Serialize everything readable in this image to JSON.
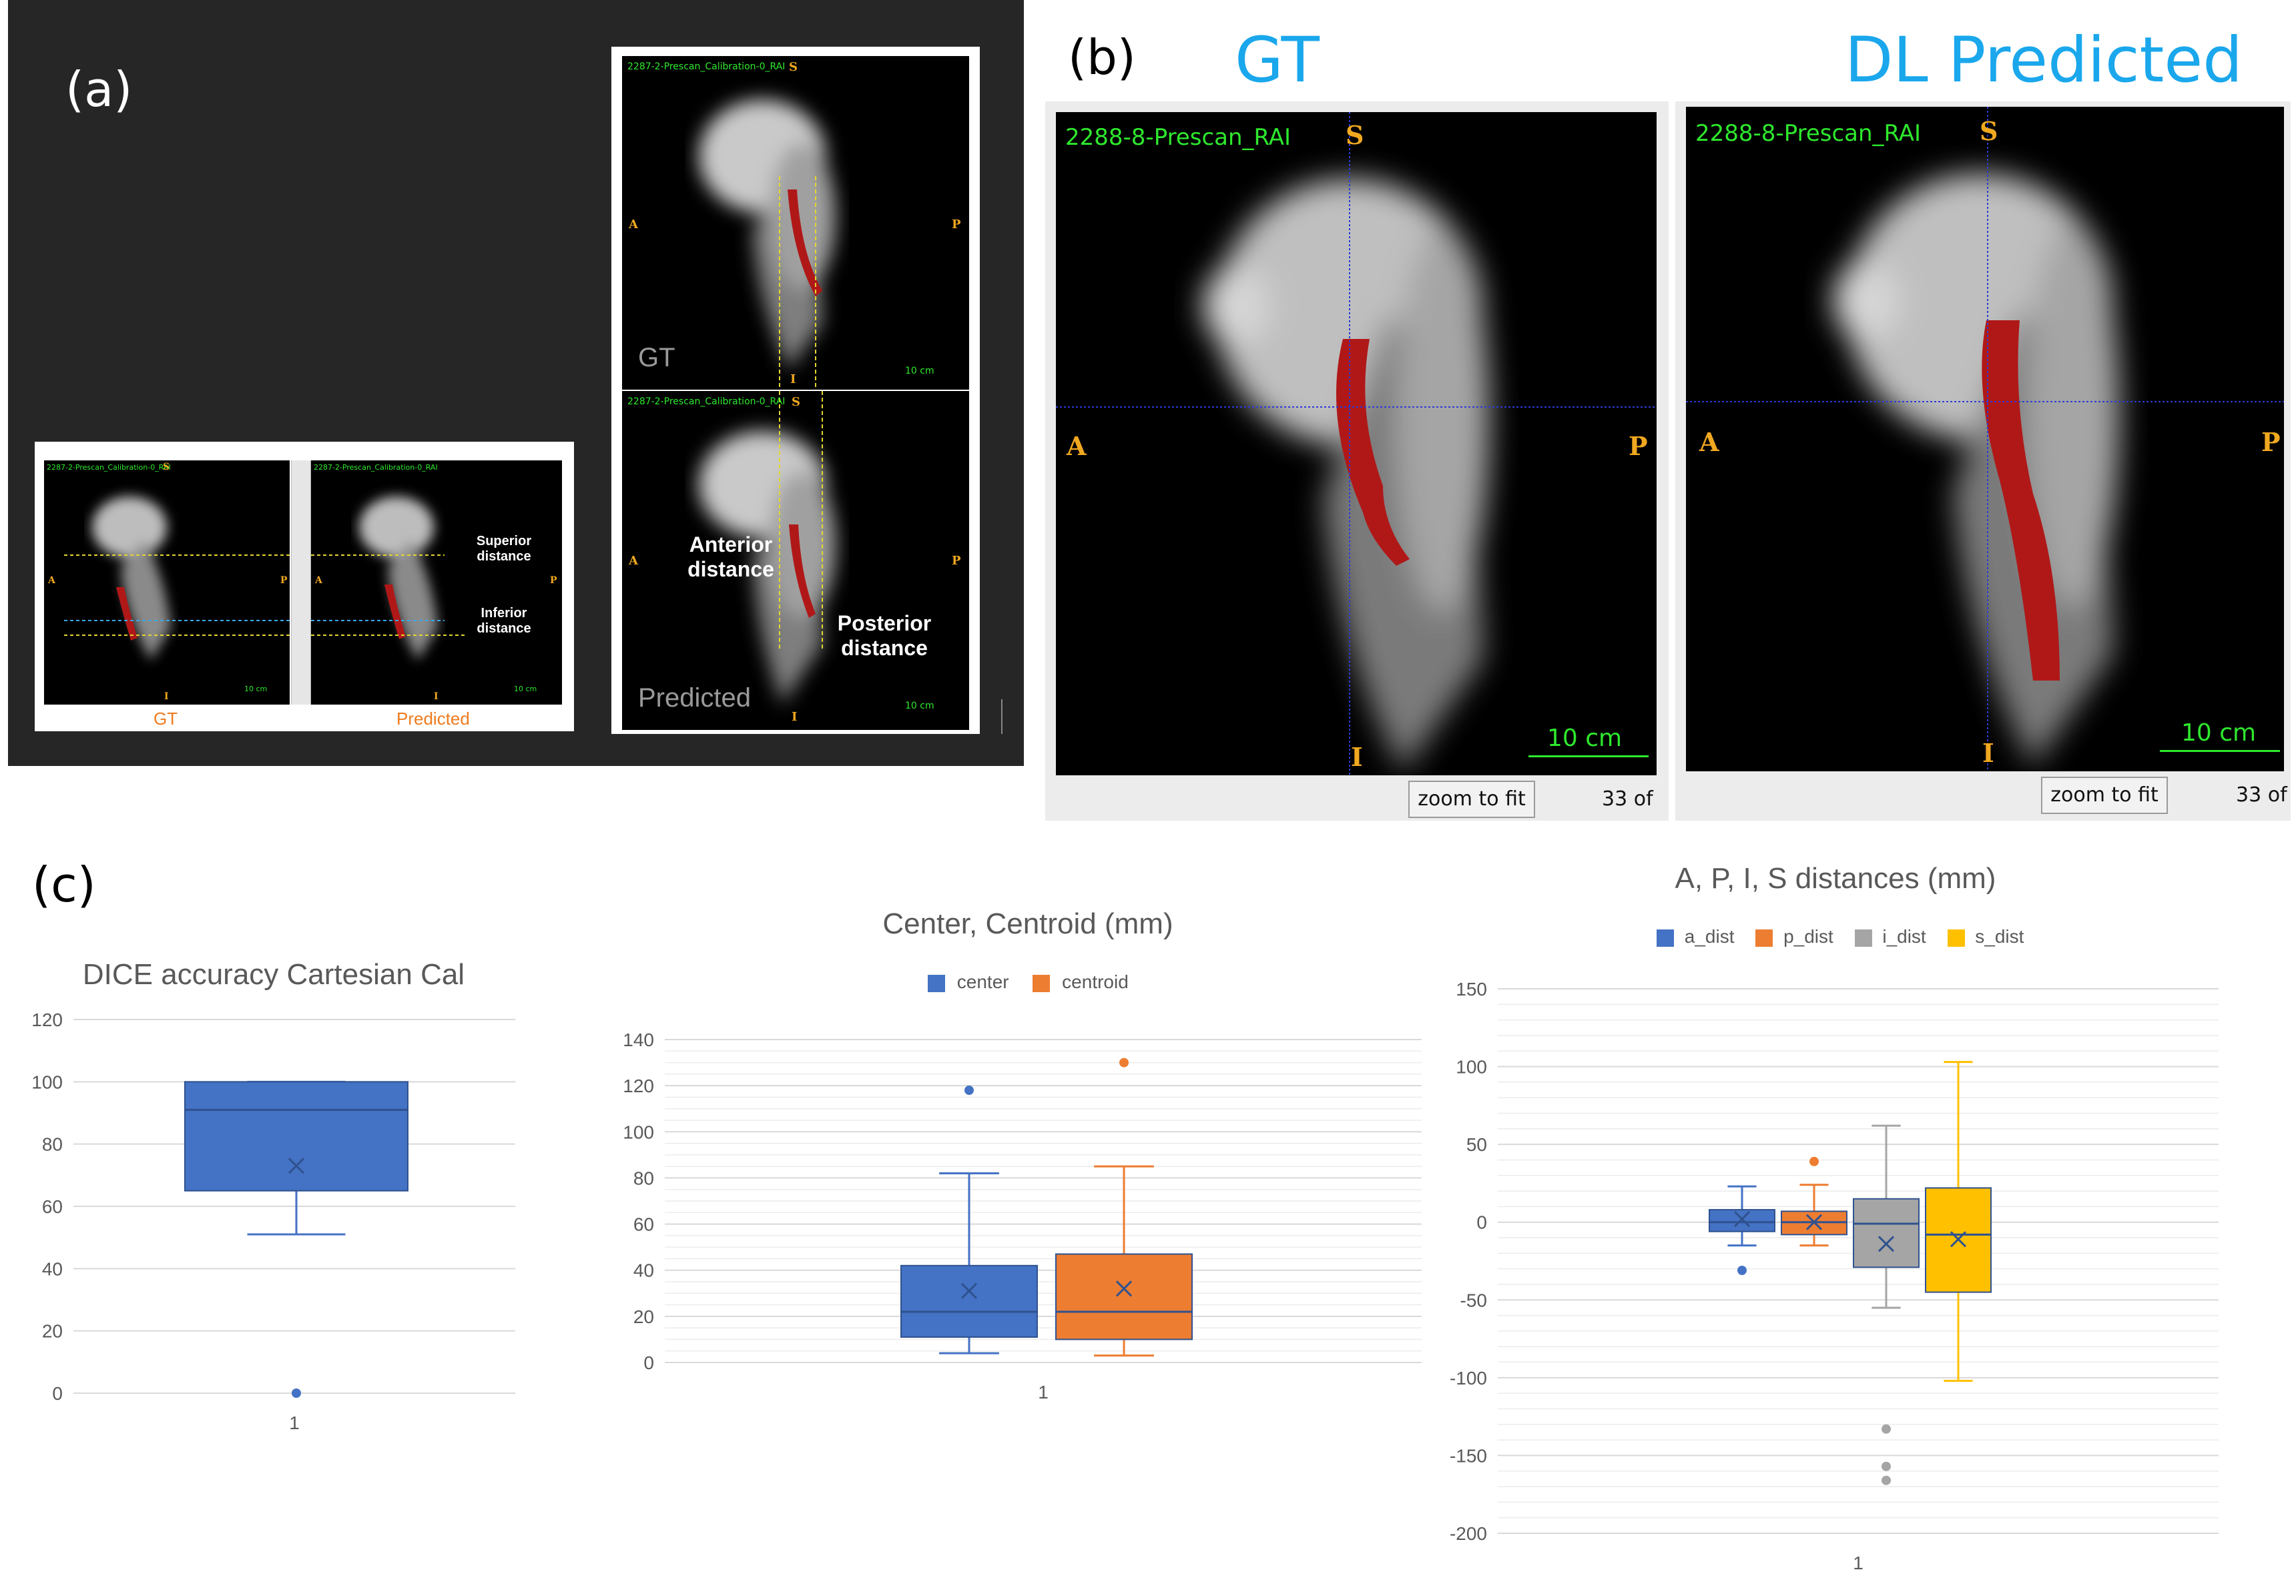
{
  "labels": {
    "a": "(a)",
    "b": "(b)",
    "c": "(c)"
  },
  "panel_a": {
    "scan_id": "2287-2-Prescan_Calibration-0_RAI",
    "orient": {
      "s": "S",
      "i": "I",
      "a": "A",
      "p": "P"
    },
    "scale": "10 cm",
    "small_caption_gt": "GT",
    "small_caption_pred": "Predicted",
    "superior": "Superior distance",
    "inferior": "Inferior distance",
    "anterior": "Anterior distance",
    "posterior": "Posterior distance",
    "gt": "GT",
    "predicted": "Predicted"
  },
  "panel_b": {
    "title_gt": "GT",
    "title_pred": "DL Predicted",
    "scan_id": "2288-8-Prescan_RAI",
    "orient": {
      "s": "S",
      "i": "I",
      "a": "A",
      "p": "P"
    },
    "scale": "10 cm",
    "zoom_button": "zoom to fit",
    "slice": "33 of"
  },
  "colors": {
    "blue": "#4472C4",
    "orange": "#ED7D31",
    "gray": "#A5A5A5",
    "gold": "#FFC000",
    "mask": "#b01818",
    "header_blue": "#1aa7ec"
  },
  "chart_data": [
    {
      "type": "box",
      "title": "DICE accuracy Cartesian Cal",
      "categories": [
        "1"
      ],
      "ylim": [
        0,
        120
      ],
      "yticks": [
        0,
        20,
        40,
        60,
        80,
        100,
        120
      ],
      "grid": true,
      "series": [
        {
          "min": 51,
          "q1": 65,
          "median": 91,
          "q3": 100,
          "max": 100,
          "mean": 73,
          "outliers": [
            0
          ],
          "color": "#4472C4"
        }
      ]
    },
    {
      "type": "box",
      "title": "Center, Centroid (mm)",
      "categories": [
        "1"
      ],
      "ylim": [
        0,
        140
      ],
      "yticks": [
        0,
        20,
        40,
        60,
        80,
        100,
        120,
        140
      ],
      "grid": true,
      "legend_position": "top",
      "series": [
        {
          "name": "center",
          "min": 4,
          "q1": 11,
          "median": 22,
          "q3": 42,
          "max": 82,
          "mean": 31,
          "outliers": [
            118
          ],
          "color": "#4472C4"
        },
        {
          "name": "centroid",
          "min": 3,
          "q1": 10,
          "median": 22,
          "q3": 47,
          "max": 85,
          "mean": 32,
          "outliers": [
            130
          ],
          "color": "#ED7D31"
        }
      ]
    },
    {
      "type": "box",
      "title": "A, P, I, S distances (mm)",
      "categories": [
        "1"
      ],
      "ylim": [
        -200,
        150
      ],
      "yticks": [
        -200,
        -150,
        -100,
        -50,
        0,
        50,
        100,
        150
      ],
      "grid": true,
      "legend_position": "top",
      "series": [
        {
          "name": "a_dist",
          "min": -15,
          "q1": -6,
          "median": 0,
          "q3": 8,
          "max": 23,
          "mean": 2,
          "outliers": [
            -31
          ],
          "color": "#4472C4"
        },
        {
          "name": "p_dist",
          "min": -15,
          "q1": -8,
          "median": 0,
          "q3": 7,
          "max": 24,
          "mean": 0,
          "outliers": [
            39
          ],
          "color": "#ED7D31"
        },
        {
          "name": "i_dist",
          "min": -55,
          "q1": -29,
          "median": -1,
          "q3": 15,
          "max": 62,
          "mean": -14,
          "outliers": [
            -133,
            -157,
            -166
          ],
          "color": "#A5A5A5"
        },
        {
          "name": "s_dist",
          "min": -102,
          "q1": -45,
          "median": -8,
          "q3": 22,
          "max": 103,
          "mean": -11,
          "outliers": [],
          "color": "#FFC000"
        }
      ]
    }
  ]
}
